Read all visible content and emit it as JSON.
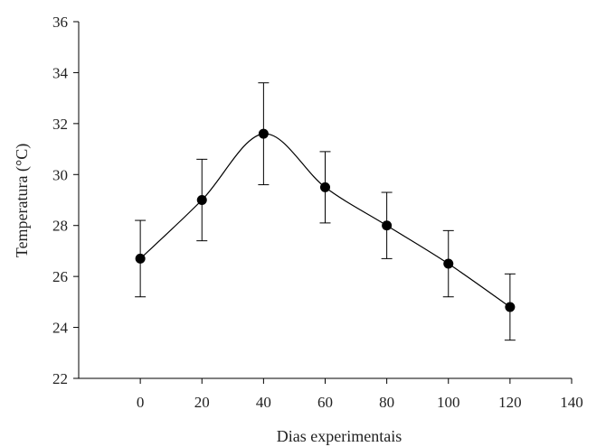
{
  "chart_data": {
    "type": "line",
    "xlabel": "Dias experimentais",
    "ylabel": "Temperatura (°C)",
    "xlim": [
      -20,
      140
    ],
    "ylim": [
      22,
      36
    ],
    "xticks": [
      0,
      20,
      40,
      60,
      80,
      100,
      120,
      140
    ],
    "yticks": [
      22,
      24,
      26,
      28,
      30,
      32,
      34,
      36
    ],
    "grid": false,
    "legend": "none",
    "smooth": true,
    "series": [
      {
        "x": [
          0,
          20,
          40,
          60,
          80,
          100,
          120
        ],
        "y": [
          26.7,
          29.0,
          31.6,
          29.5,
          28.0,
          26.5,
          24.8
        ],
        "error": [
          1.5,
          1.6,
          2.0,
          1.4,
          1.3,
          1.3,
          1.3
        ],
        "color": "#000000",
        "marker": "circle"
      }
    ]
  }
}
